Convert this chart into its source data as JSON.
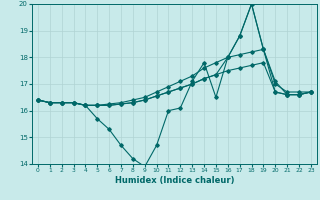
{
  "xlabel": "Humidex (Indice chaleur)",
  "bg_color": "#c8eaea",
  "grid_color": "#b0d4d4",
  "line_color": "#006868",
  "xlim": [
    -0.5,
    23.5
  ],
  "ylim": [
    14,
    20
  ],
  "yticks": [
    14,
    15,
    16,
    17,
    18,
    19,
    20
  ],
  "xticks": [
    0,
    1,
    2,
    3,
    4,
    5,
    6,
    7,
    8,
    9,
    10,
    11,
    12,
    13,
    14,
    15,
    16,
    17,
    18,
    19,
    20,
    21,
    22,
    23
  ],
  "line_min_x": [
    0,
    1,
    2,
    3,
    4,
    5,
    6,
    7,
    8,
    9,
    10,
    11,
    12,
    13,
    14,
    15,
    16,
    17,
    18,
    19,
    20,
    21,
    22,
    23
  ],
  "line_min_y": [
    16.4,
    16.3,
    16.3,
    16.3,
    16.2,
    15.7,
    15.3,
    14.7,
    14.2,
    13.9,
    14.7,
    16.0,
    16.1,
    17.1,
    17.8,
    16.5,
    18.0,
    18.8,
    20.0,
    18.3,
    17.1,
    16.6,
    16.6,
    16.7
  ],
  "line_avg_x": [
    0,
    1,
    2,
    3,
    4,
    5,
    6,
    7,
    8,
    9,
    10,
    11,
    12,
    13,
    14,
    15,
    16,
    17,
    18,
    19,
    20,
    21,
    22,
    23
  ],
  "line_avg_y": [
    16.4,
    16.3,
    16.3,
    16.3,
    16.2,
    16.2,
    16.2,
    16.25,
    16.3,
    16.4,
    16.55,
    16.7,
    16.85,
    17.0,
    17.2,
    17.35,
    17.5,
    17.6,
    17.7,
    17.8,
    16.7,
    16.6,
    16.6,
    16.7
  ],
  "line_mid_x": [
    0,
    1,
    2,
    3,
    4,
    5,
    6,
    7,
    8,
    9,
    10,
    11,
    12,
    13,
    14,
    15,
    16,
    17,
    18,
    19,
    20,
    21,
    22,
    23
  ],
  "line_mid_y": [
    16.4,
    16.3,
    16.3,
    16.3,
    16.2,
    16.2,
    16.25,
    16.3,
    16.4,
    16.5,
    16.7,
    16.9,
    17.1,
    17.3,
    17.6,
    17.8,
    18.0,
    18.1,
    18.2,
    18.3,
    17.0,
    16.7,
    16.7,
    16.7
  ],
  "line_max_x": [
    0,
    1,
    2,
    3,
    4,
    5,
    6,
    7,
    8,
    9,
    10,
    11,
    12,
    13,
    14,
    15,
    16,
    17,
    18,
    19,
    20,
    21,
    22,
    23
  ],
  "line_max_y": [
    16.4,
    16.3,
    16.3,
    16.3,
    16.2,
    16.2,
    16.2,
    16.25,
    16.3,
    16.4,
    16.55,
    16.7,
    16.85,
    17.0,
    17.2,
    17.35,
    18.0,
    18.8,
    20.0,
    18.3,
    16.7,
    16.6,
    16.6,
    16.7
  ]
}
